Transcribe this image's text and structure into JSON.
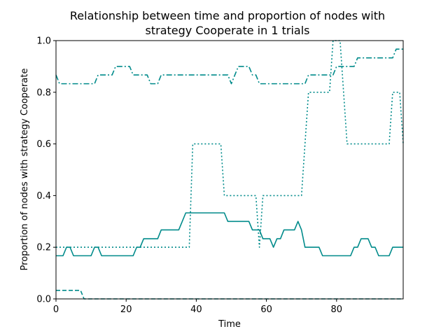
{
  "chart_data": {
    "type": "line",
    "title_line1": "Relationship between time and proportion of nodes with",
    "title_line2": "strategy Cooperate in 1 trials",
    "xlabel": "Time",
    "ylabel": "Proportion of nodes with strategy Cooperate",
    "xlim": [
      0,
      99
    ],
    "ylim": [
      0,
      1
    ],
    "xticks": [
      0,
      20,
      40,
      60,
      80
    ],
    "yticks": [
      0.0,
      0.2,
      0.4,
      0.6,
      0.8,
      1.0
    ],
    "xtick_labels": [
      "0",
      "20",
      "40",
      "60",
      "80"
    ],
    "ytick_labels": [
      "0.0",
      "0.2",
      "0.4",
      "0.6",
      "0.8",
      "1.0"
    ],
    "grid": false,
    "line_color": "#008b8b",
    "series": [
      {
        "style": "solid",
        "x": [
          0,
          2,
          3,
          4,
          5,
          6,
          10,
          11,
          12,
          13,
          22,
          23,
          24,
          25,
          29,
          30,
          35,
          36,
          37,
          38,
          48,
          49,
          55,
          56,
          58,
          59,
          61,
          62,
          63,
          64,
          65,
          66,
          68,
          69,
          70,
          71,
          72,
          75,
          76,
          84,
          85,
          86,
          87,
          88,
          89,
          90,
          91,
          92,
          95,
          96,
          99
        ],
        "y": [
          0.167,
          0.167,
          0.2,
          0.2,
          0.167,
          0.167,
          0.167,
          0.2,
          0.2,
          0.167,
          0.167,
          0.2,
          0.2,
          0.233,
          0.233,
          0.267,
          0.267,
          0.3,
          0.333,
          0.333,
          0.333,
          0.3,
          0.3,
          0.267,
          0.267,
          0.233,
          0.233,
          0.2,
          0.233,
          0.233,
          0.267,
          0.267,
          0.267,
          0.3,
          0.267,
          0.2,
          0.2,
          0.2,
          0.167,
          0.167,
          0.2,
          0.2,
          0.233,
          0.233,
          0.233,
          0.2,
          0.2,
          0.167,
          0.167,
          0.2,
          0.2
        ]
      },
      {
        "style": "dashed",
        "x": [
          0,
          7,
          8,
          99
        ],
        "y": [
          0.033,
          0.033,
          0.0,
          0.0
        ]
      },
      {
        "style": "dotted",
        "x": [
          0,
          38,
          39,
          47,
          48,
          57,
          58,
          59,
          70,
          71,
          72,
          78,
          79,
          81,
          82,
          83,
          95,
          96,
          97,
          98,
          99
        ],
        "y": [
          0.2,
          0.2,
          0.6,
          0.6,
          0.4,
          0.4,
          0.2,
          0.4,
          0.4,
          0.6,
          0.8,
          0.8,
          1.0,
          1.0,
          0.8,
          0.6,
          0.6,
          0.8,
          0.8,
          0.8,
          0.6
        ]
      },
      {
        "style": "dashdot",
        "x": [
          0,
          1,
          11,
          12,
          16,
          17,
          21,
          22,
          26,
          27,
          29,
          30,
          49,
          50,
          51,
          52,
          55,
          56,
          57,
          58,
          59,
          70,
          71,
          72,
          78,
          79,
          80,
          85,
          86,
          87,
          96,
          97,
          99
        ],
        "y": [
          0.867,
          0.833,
          0.833,
          0.867,
          0.867,
          0.9,
          0.9,
          0.867,
          0.867,
          0.833,
          0.833,
          0.867,
          0.867,
          0.833,
          0.867,
          0.9,
          0.9,
          0.867,
          0.867,
          0.833,
          0.833,
          0.833,
          0.833,
          0.867,
          0.867,
          0.867,
          0.9,
          0.9,
          0.933,
          0.933,
          0.933,
          0.967,
          0.967
        ]
      }
    ]
  }
}
